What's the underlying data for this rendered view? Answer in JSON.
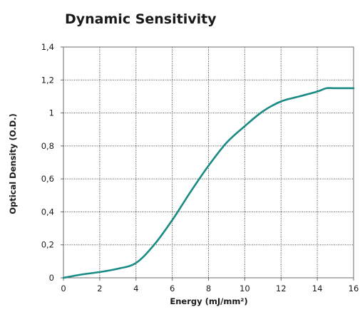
{
  "chart_data": {
    "type": "line",
    "title": "Dynamic Sensitivity",
    "xlabel": "Energy (mJ/mm²)",
    "ylabel": "Optical Density (O.D.)",
    "xlim": [
      0,
      16
    ],
    "ylim": [
      0,
      1.4
    ],
    "x_ticks": [
      0,
      2,
      4,
      6,
      8,
      10,
      12,
      14,
      16
    ],
    "x_tick_labels": [
      "0",
      "2",
      "4",
      "6",
      "8",
      "10",
      "12",
      "14",
      "16"
    ],
    "y_ticks": [
      0,
      0.2,
      0.4,
      0.6,
      0.8,
      1.0,
      1.2,
      1.4
    ],
    "y_tick_labels": [
      "0",
      "0,2",
      "0,4",
      "0,6",
      "0,8",
      "1",
      "1,2",
      "1,4"
    ],
    "grid": true,
    "grid_style": "dotted",
    "series": [
      {
        "color": "#1a8a85",
        "x": [
          0,
          1,
          2,
          3,
          4,
          5,
          6,
          7,
          8,
          9,
          10,
          11,
          12,
          13,
          14,
          14.5,
          15,
          16
        ],
        "y": [
          0,
          0.02,
          0.035,
          0.055,
          0.09,
          0.2,
          0.35,
          0.52,
          0.68,
          0.82,
          0.92,
          1.01,
          1.07,
          1.1,
          1.13,
          1.15,
          1.15,
          1.15
        ]
      }
    ]
  }
}
